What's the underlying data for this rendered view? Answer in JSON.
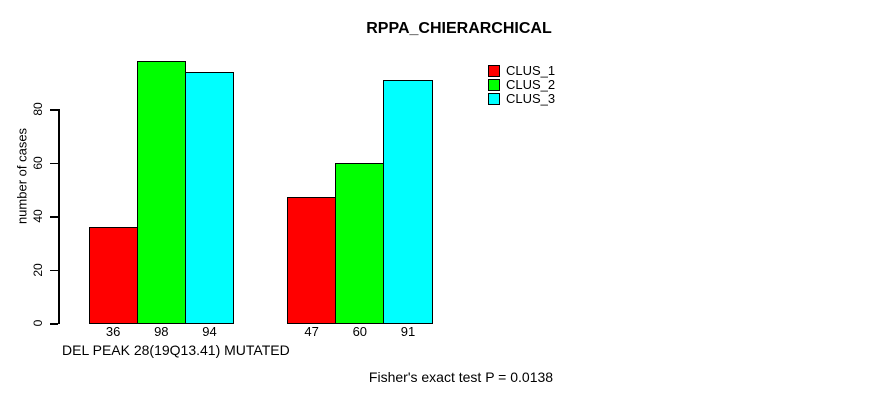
{
  "chart_data": {
    "type": "bar",
    "title": "RPPA_CHIERARCHICAL",
    "xlabel": "DEL PEAK 28(19Q13.41) MUTATED",
    "ylabel": "number of cases",
    "annotation": "Fisher's exact test P = 0.0138",
    "categories": [
      "",
      ""
    ],
    "series": [
      {
        "name": "CLUS_1",
        "color": "#FF0000",
        "values": [
          36,
          47
        ]
      },
      {
        "name": "CLUS_2",
        "color": "#00FF00",
        "values": [
          98,
          60
        ]
      },
      {
        "name": "CLUS_3",
        "color": "#00FFFF",
        "values": [
          94,
          91
        ]
      }
    ],
    "bar_value_labels": [
      36,
      98,
      94,
      47,
      60,
      91
    ],
    "yticks": [
      0,
      20,
      40,
      60,
      80
    ],
    "ylim": [
      0,
      80
    ],
    "grid": false,
    "legend_position": "top-right",
    "background": "#FFFFFF",
    "text_color": "#000000"
  }
}
